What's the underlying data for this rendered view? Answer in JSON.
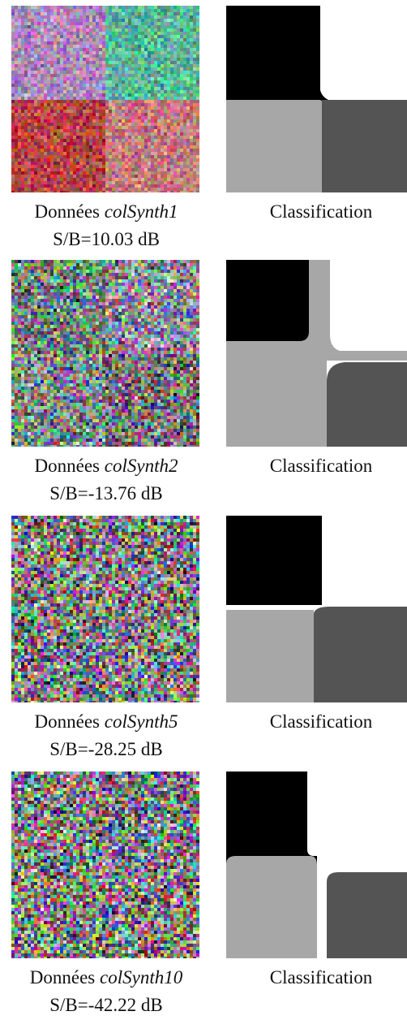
{
  "figures": [
    {
      "prefix": "Données",
      "name": "colSynth1",
      "snr": "S/B=10.03 dB",
      "class_label": "Classification",
      "quadrant_colors": [
        "#c58ad8",
        "#46d3a6",
        "#d11f24",
        "#e6797a"
      ],
      "noise": 0.35,
      "class_variant": 1
    },
    {
      "prefix": "Données",
      "name": "colSynth2",
      "snr": "S/B=-13.76 dB",
      "class_label": "Classification",
      "quadrant_colors": [
        "#3c8a62",
        "#b9b8dc",
        "#5ea08a",
        "#6b3a5a"
      ],
      "noise": 0.75,
      "class_variant": 2
    },
    {
      "prefix": "Données",
      "name": "colSynth5",
      "snr": "S/B=-28.25 dB",
      "class_label": "Classification",
      "quadrant_colors": [
        "#8a8a5a",
        "#8a7080",
        "#7a4a5a",
        "#9a7ab0"
      ],
      "noise": 0.9,
      "class_variant": 3
    },
    {
      "prefix": "Données",
      "name": "colSynth10",
      "snr": "S/B=-42.22 dB",
      "class_label": "Classification",
      "quadrant_colors": [
        "#9aa070",
        "#5a5aa8",
        "#b0a86a",
        "#8a6a78"
      ],
      "noise": 0.95,
      "class_variant": 4
    }
  ],
  "class_colors": {
    "top_left": "#000000",
    "top_right": "#ffffff",
    "bottom_left": "#a7a7a7",
    "bottom_right": "#545454"
  }
}
